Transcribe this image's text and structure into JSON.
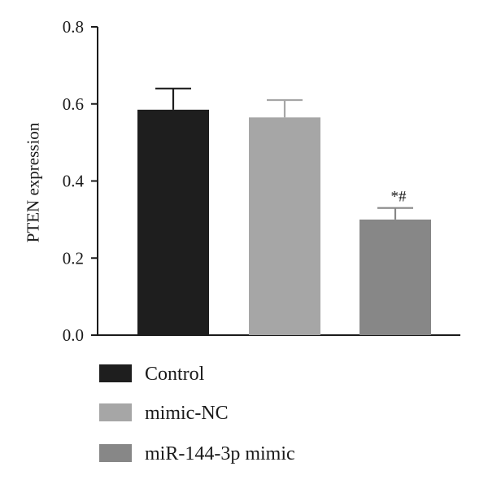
{
  "chart_data": {
    "type": "bar",
    "ylabel": "PTEN expression",
    "ylim": [
      0,
      0.8
    ],
    "yticks": [
      {
        "value": 0.0,
        "label": "0.0"
      },
      {
        "value": 0.2,
        "label": "0.2"
      },
      {
        "value": 0.4,
        "label": "0.4"
      },
      {
        "value": 0.6,
        "label": "0.6"
      },
      {
        "value": 0.8,
        "label": "0.8"
      }
    ],
    "legend_position": "bottom",
    "grid": false,
    "bars": [
      {
        "category": "Control",
        "value": 0.585,
        "error": 0.055,
        "color": "#1e1e1e",
        "annotation": ""
      },
      {
        "category": "mimic-NC",
        "value": 0.565,
        "error": 0.045,
        "color": "#a6a6a6",
        "annotation": ""
      },
      {
        "category": "miR-144-3p mimic",
        "value": 0.3,
        "error": 0.03,
        "color": "#878787",
        "annotation": "*#"
      }
    ]
  }
}
